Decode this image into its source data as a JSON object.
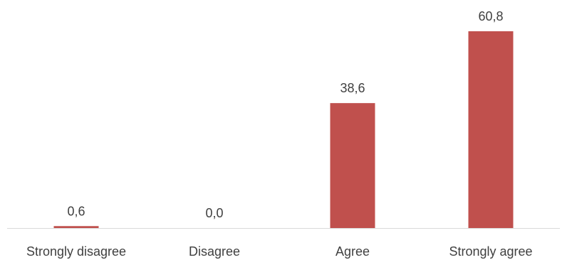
{
  "chart_data": {
    "type": "bar",
    "categories": [
      "Strongly disagree",
      "Disagree",
      "Agree",
      "Strongly agree"
    ],
    "values": [
      0.6,
      0.0,
      38.6,
      60.8
    ],
    "data_labels": [
      "0,6",
      "0,0",
      "38,6",
      "60,8"
    ],
    "title": "",
    "xlabel": "",
    "ylabel": "",
    "ylim": [
      0,
      70
    ],
    "grid": false,
    "legend": "none",
    "bar_color": "#c0504d",
    "axis_color": "#d9d9d9",
    "text_color": "#404040"
  }
}
